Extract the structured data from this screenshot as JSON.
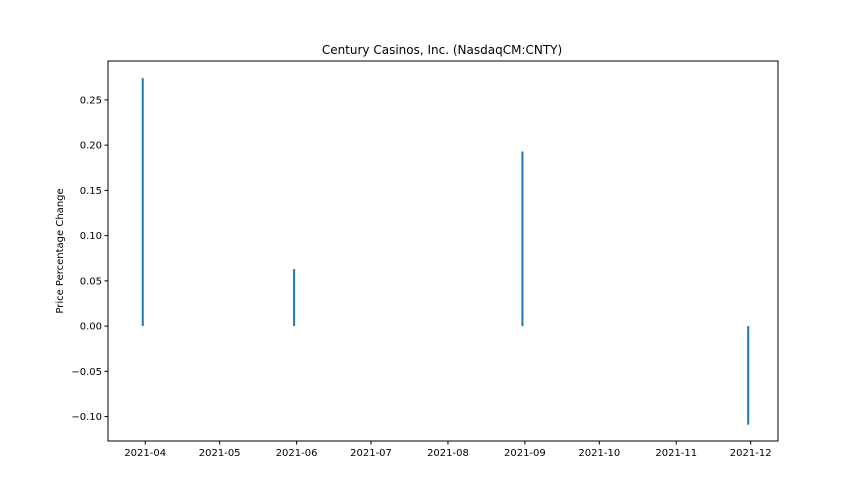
{
  "chart_data": {
    "type": "bar",
    "title": "Century Casinos, Inc. (NasdaqCM:CNTY)",
    "xlabel": "",
    "ylabel": "Price Percentage Change",
    "x_tick_labels": [
      "2021-04",
      "2021-05",
      "2021-06",
      "2021-07",
      "2021-08",
      "2021-09",
      "2021-10",
      "2021-11",
      "2021-12"
    ],
    "x_tick_dates": [
      "2021-04-01",
      "2021-05-01",
      "2021-06-01",
      "2021-07-01",
      "2021-08-01",
      "2021-09-01",
      "2021-10-01",
      "2021-11-01",
      "2021-12-01"
    ],
    "y_ticks": [
      -0.1,
      -0.05,
      0.0,
      0.05,
      0.1,
      0.15,
      0.2,
      0.25
    ],
    "y_tick_labels": [
      "−0.10",
      "−0.05",
      "0.00",
      "0.05",
      "0.10",
      "0.15",
      "0.20",
      "0.25"
    ],
    "ylim": [
      -0.127,
      0.293
    ],
    "xlim": [
      "2021-03-17",
      "2021-12-12"
    ],
    "grid": false,
    "series_color": "#1f77b4",
    "points": [
      {
        "date": "2021-03-31",
        "value": 0.274
      },
      {
        "date": "2021-05-31",
        "value": 0.063
      },
      {
        "date": "2021-08-31",
        "value": 0.193
      },
      {
        "date": "2021-11-30",
        "value": -0.109
      }
    ]
  }
}
